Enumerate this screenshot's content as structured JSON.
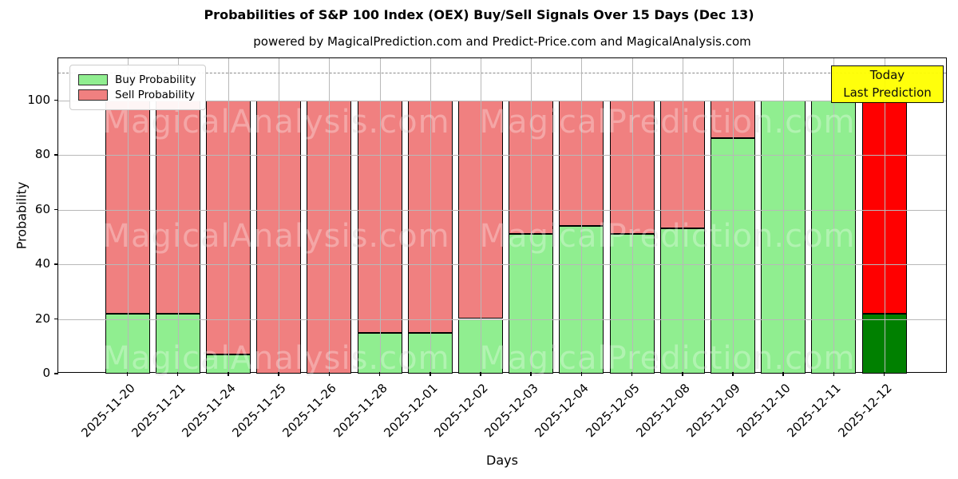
{
  "figure": {
    "title": "Probabilities of S&P 100 Index (OEX) Buy/Sell Signals Over 15 Days (Dec 13)",
    "subtitle": "powered by MagicalPrediction.com and Predict-Price.com and MagicalAnalysis.com"
  },
  "chart_data": {
    "type": "bar",
    "stacked": true,
    "title": "Probabilities of S&P 100 Index (OEX) Buy/Sell Signals Over 15 Days (Dec 13)",
    "xlabel": "Days",
    "ylabel": "Probability",
    "ylim": [
      0,
      115.33
    ],
    "yticks": [
      0,
      20,
      40,
      60,
      80,
      100
    ],
    "threshold_line": 110,
    "grid": true,
    "legend_position": "upper-left",
    "categories": [
      "2025-11-20",
      "2025-11-21",
      "2025-11-24",
      "2025-11-25",
      "2025-11-26",
      "2025-11-28",
      "2025-12-01",
      "2025-12-02",
      "2025-12-03",
      "2025-12-04",
      "2025-12-05",
      "2025-12-08",
      "2025-12-09",
      "2025-12-10",
      "2025-12-11",
      "2025-12-12"
    ],
    "series": [
      {
        "name": "Buy Probability",
        "color": "#90ee90",
        "values": [
          22,
          22,
          7,
          0,
          0,
          15,
          15,
          20,
          51,
          54,
          51,
          53,
          86,
          100,
          100,
          22
        ]
      },
      {
        "name": "Sell Probability",
        "color": "#f08080",
        "values": [
          78,
          78,
          93,
          100,
          100,
          85,
          85,
          80,
          49,
          46,
          49,
          47,
          14,
          0,
          0,
          78
        ]
      }
    ],
    "last_bar_colors": {
      "buy": "#008000",
      "sell": "#ff0000"
    }
  },
  "legend": {
    "buy_label": "Buy Probability",
    "sell_label": "Sell Probability",
    "buy_color": "#90ee90",
    "sell_color": "#f08080"
  },
  "annotation_box": {
    "line1": "Today",
    "line2": "Last Prediction",
    "bg_color": "#ffff00"
  },
  "watermarks": {
    "left": "MagicalAnalysis.com",
    "right": "MagicalPrediction.com"
  },
  "axes": {
    "xlabel": "Days",
    "ylabel": "Probability"
  }
}
